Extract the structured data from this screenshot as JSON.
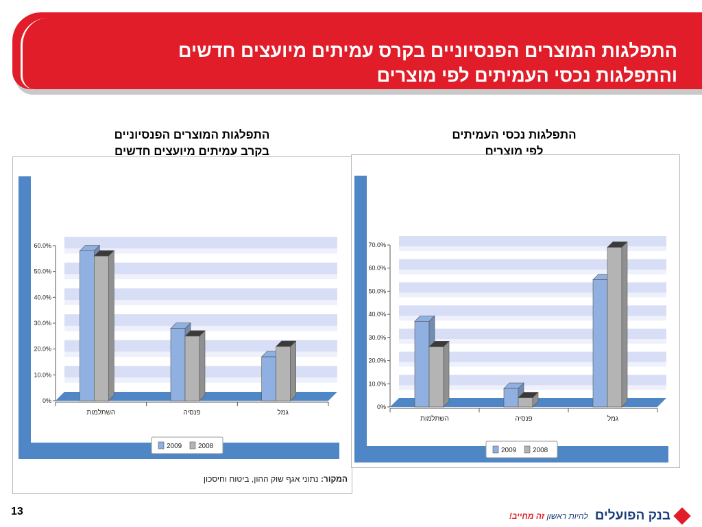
{
  "header": {
    "title_line1": "התפלגות המוצרים הפנסיוניים בקרס עמיתים מיועצים חדשים",
    "title_line2": "והתפלגות נכסי העמיתים לפי מוצרים"
  },
  "left_block": {
    "subtitle_line1": "התפלגות המוצרים הפנסיוניים",
    "subtitle_line2": "בקרב עמיתים מיועצים חדשים",
    "source_label": "המקור:",
    "source_text": "נתוני אגף שוק ההון, ביטוח וחיסכון"
  },
  "right_block": {
    "subtitle_line1": "התפלגות נכסי העמיתים",
    "subtitle_line2": "לפי מוצרים"
  },
  "footer": {
    "page_number": "13",
    "logo_name": "בנק הפועלים",
    "slogan_part1": "להיות ראשון",
    "slogan_part2": "זה מחייב!"
  },
  "colors": {
    "banner": "#e21d2a",
    "series_2009": "#8fb0e0",
    "series_2008": "#b4b4b4",
    "backdrop": "#4f86c6"
  },
  "chart_data": [
    {
      "type": "bar",
      "categories": [
        "השתלמות",
        "פנסיה",
        "גמל"
      ],
      "series": [
        {
          "name": "2009",
          "values": [
            58,
            28,
            17
          ]
        },
        {
          "name": "2008",
          "values": [
            56,
            25,
            21
          ]
        }
      ],
      "yticks": [
        "0%",
        "10.0%",
        "20.0%",
        "30.0%",
        "40.0%",
        "50.0%",
        "60.0%"
      ],
      "ylim": [
        0,
        60
      ],
      "legend": "bottom",
      "grid": true
    },
    {
      "type": "bar",
      "categories": [
        "השתלמות",
        "פנסיה",
        "גמל"
      ],
      "series": [
        {
          "name": "2009",
          "values": [
            37,
            8,
            55
          ]
        },
        {
          "name": "2008",
          "values": [
            26,
            4,
            69
          ]
        }
      ],
      "yticks": [
        "0%",
        "10.0%",
        "20.0%",
        "30.0%",
        "40.0%",
        "50.0%",
        "60.0%",
        "70.0%"
      ],
      "ylim": [
        0,
        70
      ],
      "legend": "bottom",
      "grid": true
    }
  ]
}
